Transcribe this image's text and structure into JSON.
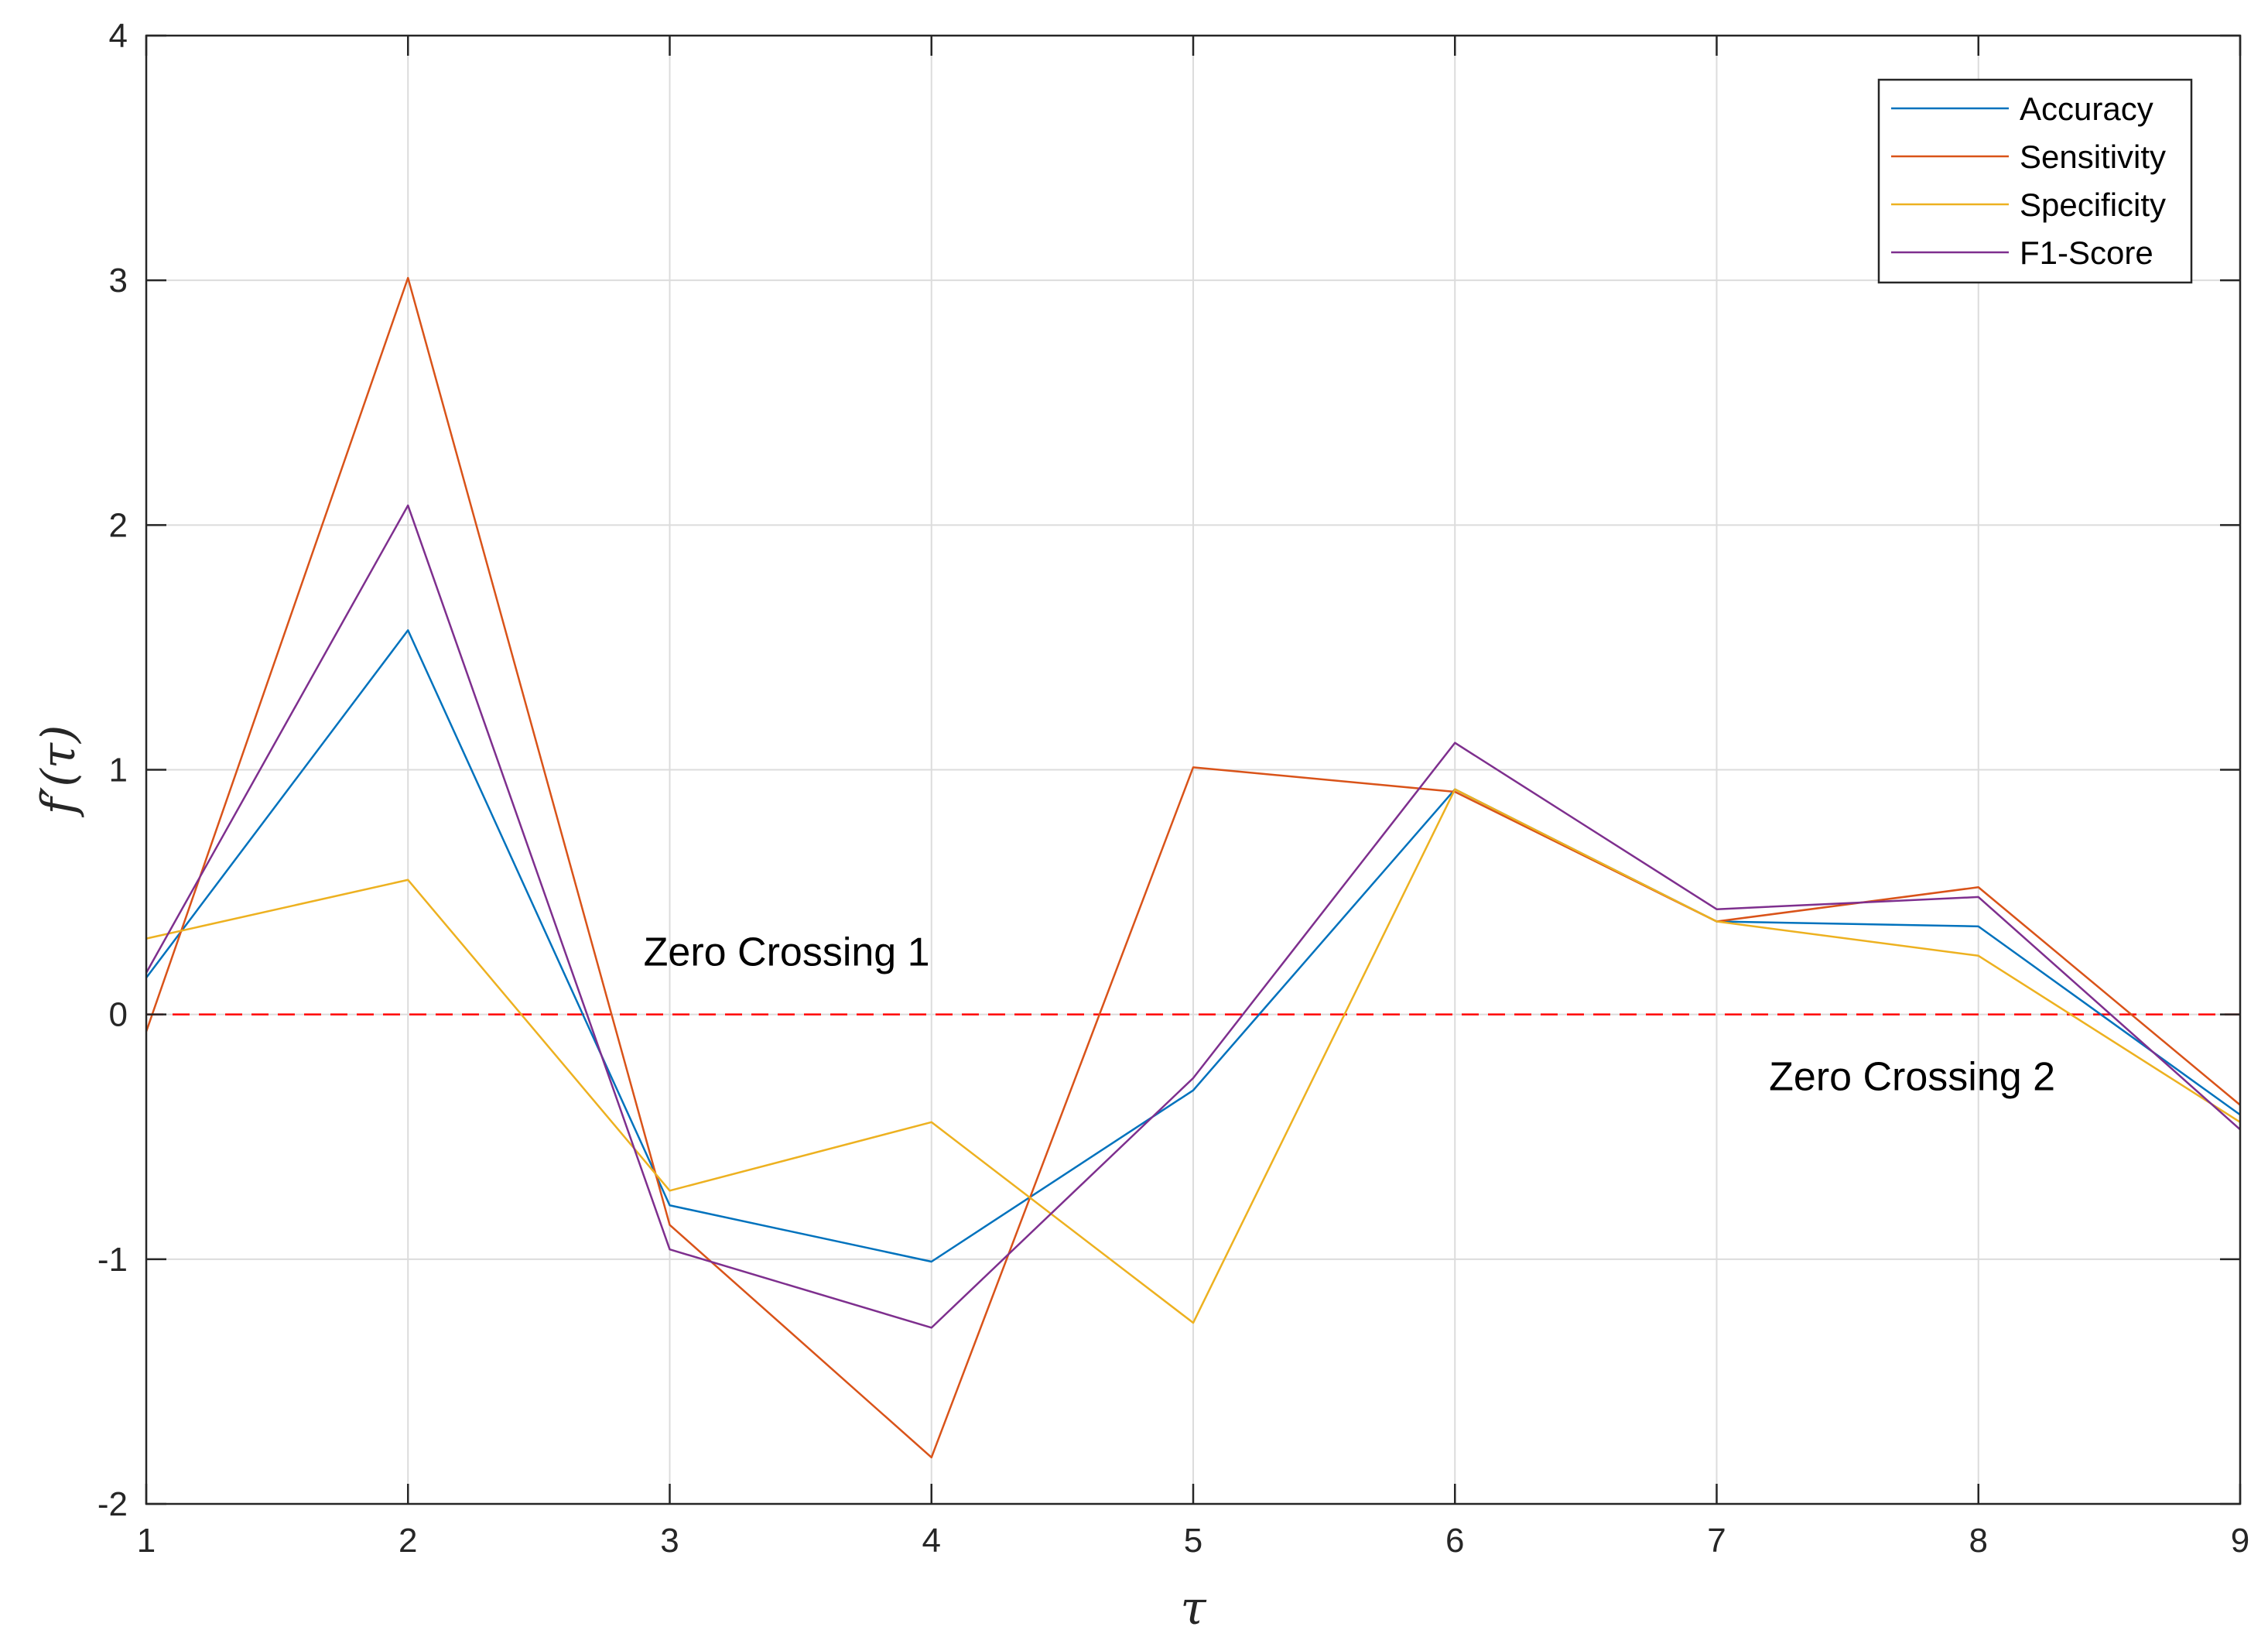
{
  "chart_data": {
    "type": "line",
    "title": "",
    "xlabel": "τ",
    "ylabel": "f′(τ)",
    "xlim": [
      1,
      9
    ],
    "ylim": [
      -2,
      4
    ],
    "grid": true,
    "legend_position": "top-right",
    "x_ticks": [
      1,
      2,
      3,
      4,
      5,
      6,
      7,
      8,
      9
    ],
    "x_tick_labels": [
      "1",
      "2",
      "3",
      "4",
      "5",
      "6",
      "7",
      "8",
      "9"
    ],
    "y_ticks": [
      -2,
      -1,
      0,
      1,
      2,
      3,
      4
    ],
    "y_tick_labels": [
      "-2",
      "-1",
      "0",
      "1",
      "2",
      "3",
      "4"
    ],
    "x": [
      1,
      2,
      3,
      4,
      5,
      6,
      7,
      8,
      9
    ],
    "series": [
      {
        "name": "Accuracy",
        "color": "#0072BD",
        "values": [
          0.15,
          1.57,
          -0.78,
          -1.01,
          -0.31,
          0.92,
          0.38,
          0.36,
          -0.41
        ]
      },
      {
        "name": "Sensitivity",
        "color": "#D95319",
        "values": [
          -0.07,
          3.01,
          -0.86,
          -1.81,
          1.01,
          0.91,
          0.38,
          0.52,
          -0.37
        ]
      },
      {
        "name": "Specificity",
        "color": "#EDB120",
        "values": [
          0.31,
          0.55,
          -0.72,
          -0.44,
          -1.26,
          0.92,
          0.38,
          0.24,
          -0.44
        ]
      },
      {
        "name": "F1-Score",
        "color": "#7E2F8E",
        "values": [
          0.17,
          2.08,
          -0.96,
          -1.28,
          -0.26,
          1.11,
          0.43,
          0.48,
          -0.47
        ]
      }
    ],
    "reference_line": {
      "y": 0,
      "color": "#FF0000",
      "style": "dashed"
    },
    "annotations": [
      {
        "text": "Zero Crossing 1",
        "x": 2.9,
        "y": 0.2
      },
      {
        "text": "Zero Crossing 2",
        "x": 7.2,
        "y": -0.31
      }
    ]
  }
}
